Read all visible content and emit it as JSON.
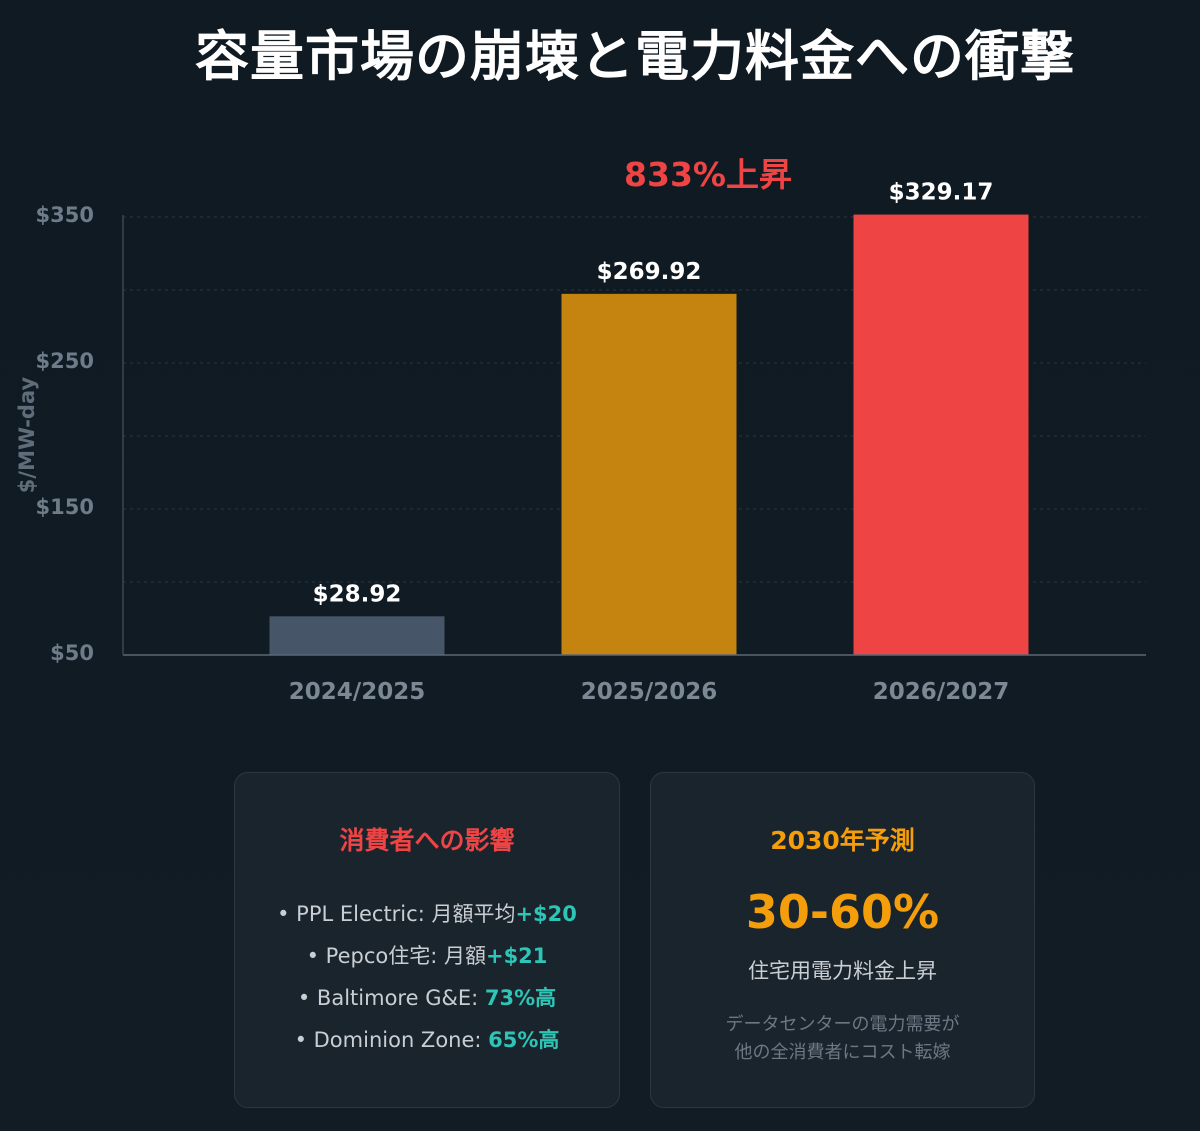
{
  "title": "容量市場の崩壊と電力料金への衝撃",
  "chart_data": {
    "type": "bar",
    "categories": [
      "2024/2025",
      "2025/2026",
      "2026/2027"
    ],
    "values": [
      28.92,
      269.92,
      329.17
    ],
    "value_labels": [
      "$28.92",
      "$269.92",
      "$329.17"
    ],
    "colors": [
      "#475569",
      "#c58310",
      "#ef4444"
    ],
    "ylabel": "$/MW-day",
    "y_ticks": [
      "$350",
      "$250",
      "$150",
      "$50"
    ],
    "annotation": "833%上昇",
    "grid": true
  },
  "card_impact": {
    "title": "消費者への影響",
    "items": [
      {
        "text": "• PPL Electric: 月額平均",
        "highlight": "+$20"
      },
      {
        "text": "• Pepco住宅: 月額",
        "highlight": "+$21"
      },
      {
        "text": "• Baltimore G&E: ",
        "highlight": "73%高"
      },
      {
        "text": "• Dominion Zone: ",
        "highlight": "65%高"
      }
    ]
  },
  "card_forecast": {
    "title": "2030年予測",
    "value": "30-60%",
    "subtitle": "住宅用電力料金上昇",
    "note_line1": "データセンターの電力需要が",
    "note_line2": "他の全消費者にコスト転嫁"
  }
}
